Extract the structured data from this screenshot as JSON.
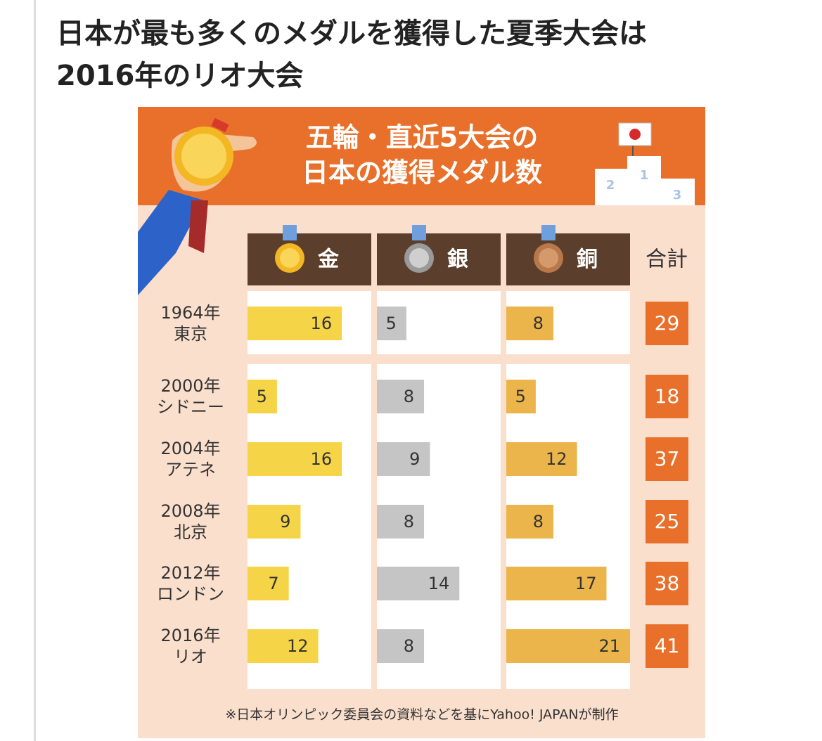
{
  "heading": [
    "日本が最も多くのメダルを獲得した夏季大会は",
    "2016年のリオ大会"
  ],
  "chart_data": {
    "type": "bar",
    "title": [
      "五輪・直近5大会の",
      "日本の獲得メダル数"
    ],
    "podium": [
      "1",
      "2",
      "3"
    ],
    "categories": [
      [
        "1964年",
        "東京"
      ],
      [
        "2000年",
        "シドニー"
      ],
      [
        "2004年",
        "アテネ"
      ],
      [
        "2008年",
        "北京"
      ],
      [
        "2012年",
        "ロンドン"
      ],
      [
        "2016年",
        "リオ"
      ]
    ],
    "series": [
      {
        "name": "金",
        "color": "#f5d547",
        "values": [
          16,
          5,
          16,
          9,
          7,
          12
        ]
      },
      {
        "name": "銀",
        "color": "#c5c5c5",
        "values": [
          5,
          8,
          9,
          8,
          14,
          8
        ]
      },
      {
        "name": "銅",
        "color": "#ebb54c",
        "values": [
          8,
          5,
          12,
          8,
          17,
          21
        ]
      }
    ],
    "totals": {
      "name": "合計",
      "color": "#e8702a",
      "values": [
        29,
        18,
        37,
        25,
        38,
        41
      ]
    },
    "note": "※日本オリンピック委員会の資料などを基にYahoo! JAPANが制作"
  }
}
